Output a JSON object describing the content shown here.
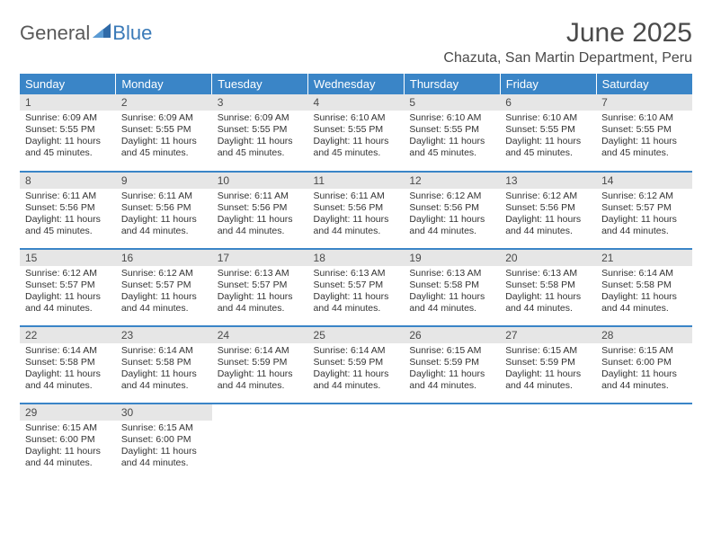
{
  "logo": {
    "general": "General",
    "blue": "Blue",
    "icon_color": "#2f6aa8"
  },
  "title": "June 2025",
  "location": "Chazuta, San Martin Department, Peru",
  "colors": {
    "header_bg": "#3a85c7",
    "header_text": "#ffffff",
    "daynum_bg": "#e6e6e6",
    "row_border": "#3a85c7",
    "body_text": "#333333",
    "title_text": "#4a4a4a"
  },
  "weekdays": [
    "Sunday",
    "Monday",
    "Tuesday",
    "Wednesday",
    "Thursday",
    "Friday",
    "Saturday"
  ],
  "weeks": [
    [
      {
        "n": "1",
        "sr": "Sunrise: 6:09 AM",
        "ss": "Sunset: 5:55 PM",
        "d1": "Daylight: 11 hours",
        "d2": "and 45 minutes."
      },
      {
        "n": "2",
        "sr": "Sunrise: 6:09 AM",
        "ss": "Sunset: 5:55 PM",
        "d1": "Daylight: 11 hours",
        "d2": "and 45 minutes."
      },
      {
        "n": "3",
        "sr": "Sunrise: 6:09 AM",
        "ss": "Sunset: 5:55 PM",
        "d1": "Daylight: 11 hours",
        "d2": "and 45 minutes."
      },
      {
        "n": "4",
        "sr": "Sunrise: 6:10 AM",
        "ss": "Sunset: 5:55 PM",
        "d1": "Daylight: 11 hours",
        "d2": "and 45 minutes."
      },
      {
        "n": "5",
        "sr": "Sunrise: 6:10 AM",
        "ss": "Sunset: 5:55 PM",
        "d1": "Daylight: 11 hours",
        "d2": "and 45 minutes."
      },
      {
        "n": "6",
        "sr": "Sunrise: 6:10 AM",
        "ss": "Sunset: 5:55 PM",
        "d1": "Daylight: 11 hours",
        "d2": "and 45 minutes."
      },
      {
        "n": "7",
        "sr": "Sunrise: 6:10 AM",
        "ss": "Sunset: 5:55 PM",
        "d1": "Daylight: 11 hours",
        "d2": "and 45 minutes."
      }
    ],
    [
      {
        "n": "8",
        "sr": "Sunrise: 6:11 AM",
        "ss": "Sunset: 5:56 PM",
        "d1": "Daylight: 11 hours",
        "d2": "and 45 minutes."
      },
      {
        "n": "9",
        "sr": "Sunrise: 6:11 AM",
        "ss": "Sunset: 5:56 PM",
        "d1": "Daylight: 11 hours",
        "d2": "and 44 minutes."
      },
      {
        "n": "10",
        "sr": "Sunrise: 6:11 AM",
        "ss": "Sunset: 5:56 PM",
        "d1": "Daylight: 11 hours",
        "d2": "and 44 minutes."
      },
      {
        "n": "11",
        "sr": "Sunrise: 6:11 AM",
        "ss": "Sunset: 5:56 PM",
        "d1": "Daylight: 11 hours",
        "d2": "and 44 minutes."
      },
      {
        "n": "12",
        "sr": "Sunrise: 6:12 AM",
        "ss": "Sunset: 5:56 PM",
        "d1": "Daylight: 11 hours",
        "d2": "and 44 minutes."
      },
      {
        "n": "13",
        "sr": "Sunrise: 6:12 AM",
        "ss": "Sunset: 5:56 PM",
        "d1": "Daylight: 11 hours",
        "d2": "and 44 minutes."
      },
      {
        "n": "14",
        "sr": "Sunrise: 6:12 AM",
        "ss": "Sunset: 5:57 PM",
        "d1": "Daylight: 11 hours",
        "d2": "and 44 minutes."
      }
    ],
    [
      {
        "n": "15",
        "sr": "Sunrise: 6:12 AM",
        "ss": "Sunset: 5:57 PM",
        "d1": "Daylight: 11 hours",
        "d2": "and 44 minutes."
      },
      {
        "n": "16",
        "sr": "Sunrise: 6:12 AM",
        "ss": "Sunset: 5:57 PM",
        "d1": "Daylight: 11 hours",
        "d2": "and 44 minutes."
      },
      {
        "n": "17",
        "sr": "Sunrise: 6:13 AM",
        "ss": "Sunset: 5:57 PM",
        "d1": "Daylight: 11 hours",
        "d2": "and 44 minutes."
      },
      {
        "n": "18",
        "sr": "Sunrise: 6:13 AM",
        "ss": "Sunset: 5:57 PM",
        "d1": "Daylight: 11 hours",
        "d2": "and 44 minutes."
      },
      {
        "n": "19",
        "sr": "Sunrise: 6:13 AM",
        "ss": "Sunset: 5:58 PM",
        "d1": "Daylight: 11 hours",
        "d2": "and 44 minutes."
      },
      {
        "n": "20",
        "sr": "Sunrise: 6:13 AM",
        "ss": "Sunset: 5:58 PM",
        "d1": "Daylight: 11 hours",
        "d2": "and 44 minutes."
      },
      {
        "n": "21",
        "sr": "Sunrise: 6:14 AM",
        "ss": "Sunset: 5:58 PM",
        "d1": "Daylight: 11 hours",
        "d2": "and 44 minutes."
      }
    ],
    [
      {
        "n": "22",
        "sr": "Sunrise: 6:14 AM",
        "ss": "Sunset: 5:58 PM",
        "d1": "Daylight: 11 hours",
        "d2": "and 44 minutes."
      },
      {
        "n": "23",
        "sr": "Sunrise: 6:14 AM",
        "ss": "Sunset: 5:58 PM",
        "d1": "Daylight: 11 hours",
        "d2": "and 44 minutes."
      },
      {
        "n": "24",
        "sr": "Sunrise: 6:14 AM",
        "ss": "Sunset: 5:59 PM",
        "d1": "Daylight: 11 hours",
        "d2": "and 44 minutes."
      },
      {
        "n": "25",
        "sr": "Sunrise: 6:14 AM",
        "ss": "Sunset: 5:59 PM",
        "d1": "Daylight: 11 hours",
        "d2": "and 44 minutes."
      },
      {
        "n": "26",
        "sr": "Sunrise: 6:15 AM",
        "ss": "Sunset: 5:59 PM",
        "d1": "Daylight: 11 hours",
        "d2": "and 44 minutes."
      },
      {
        "n": "27",
        "sr": "Sunrise: 6:15 AM",
        "ss": "Sunset: 5:59 PM",
        "d1": "Daylight: 11 hours",
        "d2": "and 44 minutes."
      },
      {
        "n": "28",
        "sr": "Sunrise: 6:15 AM",
        "ss": "Sunset: 6:00 PM",
        "d1": "Daylight: 11 hours",
        "d2": "and 44 minutes."
      }
    ],
    [
      {
        "n": "29",
        "sr": "Sunrise: 6:15 AM",
        "ss": "Sunset: 6:00 PM",
        "d1": "Daylight: 11 hours",
        "d2": "and 44 minutes."
      },
      {
        "n": "30",
        "sr": "Sunrise: 6:15 AM",
        "ss": "Sunset: 6:00 PM",
        "d1": "Daylight: 11 hours",
        "d2": "and 44 minutes."
      },
      null,
      null,
      null,
      null,
      null
    ]
  ]
}
